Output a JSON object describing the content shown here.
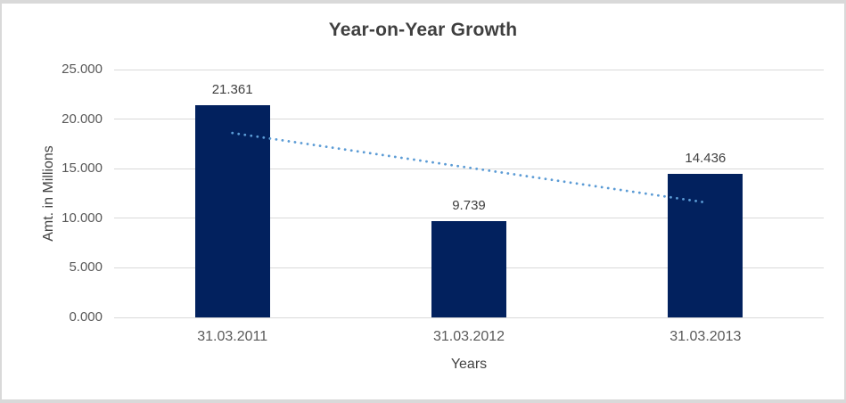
{
  "chart_data": {
    "type": "bar",
    "title": "Year-on-Year Growth",
    "xlabel": "Years",
    "ylabel": "Amt. in Millions",
    "categories": [
      "31.03.2011",
      "31.03.2012",
      "31.03.2013"
    ],
    "values": [
      21.361,
      9.739,
      14.436
    ],
    "value_labels": [
      "21.361",
      "9.739",
      "14.436"
    ],
    "ylim": [
      0,
      25
    ],
    "yticks": [
      0,
      5,
      10,
      15,
      20,
      25
    ],
    "ytick_labels": [
      "0.000",
      "5.000",
      "10.000",
      "15.000",
      "20.000",
      "25.000"
    ],
    "grid": true,
    "legend": false,
    "trendline": {
      "type": "linear",
      "style": "dotted",
      "color": "#5b9bd5",
      "start_category_index": 0,
      "end_category_index": 2,
      "start_value": 18.6,
      "end_value": 11.6
    },
    "colors": {
      "bar": "#02215e",
      "gridline": "#d9d9d9",
      "frame_border": "#d9d9d9",
      "title_text": "#3f3f3f",
      "tick_text": "#595959",
      "data_label_text": "#404040",
      "axis_title_text": "#424242",
      "background": "#ffffff"
    }
  }
}
